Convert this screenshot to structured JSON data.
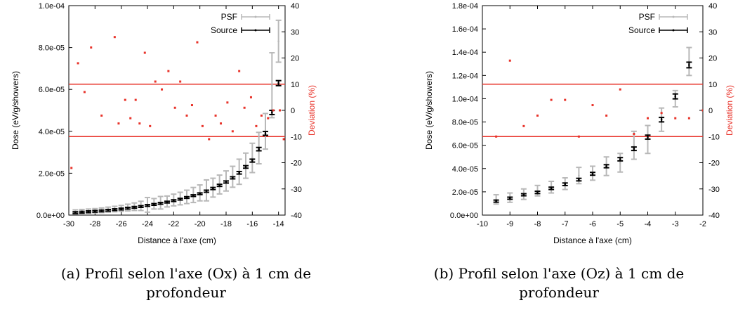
{
  "chart_data": [
    {
      "type": "scatter",
      "caption_line1": "(a) Profil selon l'axe (Ox) à 1 cm de",
      "caption_line2": "profondeur",
      "xlabel": "Distance à l'axe (cm)",
      "ylabel": "Dose (eV/g/showers)",
      "y2label": "Deviation (%)",
      "xlim": [
        -30,
        -13.5
      ],
      "ylim": [
        0,
        0.0001
      ],
      "y2lim": [
        -40,
        40
      ],
      "xticks": [
        "-30",
        "-28",
        "-26",
        "-24",
        "-22",
        "-20",
        "-18",
        "-16",
        "-14"
      ],
      "yticks": [
        "0.0e+00",
        "2.0e-05",
        "4.0e-05",
        "6.0e-05",
        "8.0e-05",
        "1.0e-04"
      ],
      "y2ticks": [
        "-40",
        "-30",
        "-20",
        "-10",
        "0",
        "10",
        "20",
        "30",
        "40"
      ],
      "legend_position": "top-right",
      "colors": {
        "psf": "#b8b8b8",
        "source": "#000000",
        "deviation": "#e8332a",
        "ref_lines": "#e8332a"
      },
      "ref_lines_y2": [
        10,
        -10
      ],
      "series": [
        {
          "name": "PSF",
          "x": [
            -29.5,
            -29,
            -28.5,
            -28,
            -27.5,
            -27,
            -26.5,
            -26,
            -25.5,
            -25,
            -24.5,
            -24,
            -23.5,
            -23,
            -22.5,
            -22,
            -21.5,
            -21,
            -20.5,
            -20,
            -19.5,
            -19,
            -18.5,
            -18,
            -17.5,
            -17,
            -16.5,
            -16,
            -15.5,
            -15,
            -14.5,
            -14
          ],
          "y": [
            1.5e-06,
            1.7e-06,
            1.9e-06,
            2.1e-06,
            2.3e-06,
            2.6e-06,
            2.9e-06,
            3.2e-06,
            3.6e-06,
            4e-06,
            4.4e-06,
            4.9e-06,
            5.4e-06,
            5.9e-06,
            6.5e-06,
            7.2e-06,
            7.9e-06,
            8.7e-06,
            9.6e-06,
            1.06e-05,
            1.18e-05,
            1.31e-05,
            1.46e-05,
            1.63e-05,
            1.83e-05,
            2.07e-05,
            2.36e-05,
            2.73e-05,
            3.2e-05,
            4e-05,
            6.2e-05,
            8.3e-05
          ],
          "err": [
            1e-06,
            1e-06,
            1e-06,
            1e-06,
            1.1e-06,
            1.2e-06,
            1.3e-06,
            1.4e-06,
            1.6e-06,
            1.8e-06,
            2.2e-06,
            3.5e-06,
            2.5e-06,
            3e-06,
            2.6e-06,
            2.8e-06,
            3e-06,
            3.2e-06,
            3.6e-06,
            3.8e-06,
            5e-06,
            4.5e-06,
            4.5e-06,
            4.8e-06,
            5e-06,
            6e-06,
            6e-06,
            7e-06,
            7.5e-06,
            8.5e-06,
            1.55e-05,
            1e-05
          ]
        },
        {
          "name": "Source",
          "x": [
            -29.5,
            -29,
            -28.5,
            -28,
            -27.5,
            -27,
            -26.5,
            -26,
            -25.5,
            -25,
            -24.5,
            -24,
            -23.5,
            -23,
            -22.5,
            -22,
            -21.5,
            -21,
            -20.5,
            -20,
            -19.5,
            -19,
            -18.5,
            -18,
            -17.5,
            -17,
            -16.5,
            -16,
            -15.5,
            -15,
            -14.5,
            -14
          ],
          "y": [
            1.2e-06,
            1.4e-06,
            1.6e-06,
            1.8e-06,
            2e-06,
            2.3e-06,
            2.6e-06,
            2.9e-06,
            3.3e-06,
            3.7e-06,
            4.1e-06,
            4.6e-06,
            5.1e-06,
            5.6e-06,
            6.2e-06,
            6.9e-06,
            7.6e-06,
            8.4e-06,
            9.3e-06,
            1.02e-05,
            1.14e-05,
            1.27e-05,
            1.42e-05,
            1.58e-05,
            1.78e-05,
            2.02e-05,
            2.3e-05,
            2.6e-05,
            3.15e-05,
            3.9e-05,
            4.9e-05,
            6.3e-05
          ],
          "err": [
            4e-07,
            4e-07,
            4e-07,
            4e-07,
            4e-07,
            4e-07,
            4e-07,
            4e-07,
            4e-07,
            4e-07,
            4e-07,
            4e-07,
            4e-07,
            4e-07,
            4e-07,
            4e-07,
            4e-07,
            4e-07,
            4e-07,
            4e-07,
            5e-07,
            5e-07,
            5e-07,
            5e-07,
            5e-07,
            6e-07,
            6e-07,
            7e-07,
            8e-07,
            9e-07,
            1e-06,
            1.2e-06
          ]
        },
        {
          "name": "Deviation",
          "axis": "y2",
          "x": [
            -29.8,
            -29.3,
            -28.8,
            -28.3,
            -27.5,
            -26.5,
            -26.2,
            -25.7,
            -25.3,
            -24.9,
            -24.6,
            -24.2,
            -23.8,
            -23.4,
            -22.9,
            -22.4,
            -21.9,
            -21.5,
            -21.0,
            -20.6,
            -20.2,
            -19.8,
            -19.3,
            -18.8,
            -18.4,
            -17.9,
            -17.5,
            -17.0,
            -16.6,
            -16.1,
            -15.7,
            -15.3,
            -14.8,
            -14.4,
            -13.9,
            -13.6
          ],
          "y": [
            -22,
            18,
            7,
            24,
            -2,
            28,
            -5,
            4,
            -3,
            4,
            -5,
            22,
            -6,
            11,
            8,
            15,
            1,
            11,
            -2,
            2,
            26,
            -6,
            -11,
            -2,
            -5,
            3,
            -8,
            15,
            1,
            5,
            -6,
            -2,
            -3,
            0,
            0,
            -11
          ]
        }
      ]
    },
    {
      "type": "scatter",
      "caption_line1": "(b) Profil selon l'axe (Oz) à 1 cm de",
      "caption_line2": "profondeur",
      "xlabel": "Distance à l'axe (cm)",
      "ylabel": "Dose (eV/g/showers)",
      "y2label": "Deviation (%)",
      "xlim": [
        -10,
        -2
      ],
      "ylim": [
        0,
        0.00018
      ],
      "y2lim": [
        -40,
        40
      ],
      "xticks": [
        "-10",
        "-9",
        "-8",
        "-7",
        "-6",
        "-5",
        "-4",
        "-3",
        "-2"
      ],
      "yticks": [
        "0.0e+00",
        "2.0e-05",
        "4.0e-05",
        "6.0e-05",
        "8.0e-05",
        "1.0e-04",
        "1.2e-04",
        "1.4e-04",
        "1.6e-04",
        "1.8e-04"
      ],
      "y2ticks": [
        "-40",
        "-30",
        "-20",
        "-10",
        "0",
        "10",
        "20",
        "30",
        "40"
      ],
      "legend_position": "top-right",
      "colors": {
        "psf": "#b8b8b8",
        "source": "#000000",
        "deviation": "#e8332a",
        "ref_lines": "#e8332a"
      },
      "ref_lines_y2": [
        10,
        -10
      ],
      "series": [
        {
          "name": "PSF",
          "x": [
            -9.5,
            -9,
            -8.5,
            -8,
            -7.5,
            -7,
            -6.5,
            -6,
            -5.5,
            -5,
            -4.5,
            -4,
            -3.5,
            -3,
            -2.5
          ],
          "y": [
            1.35e-05,
            1.5e-05,
            1.8e-05,
            2.1e-05,
            2.4e-05,
            2.7e-05,
            3.4e-05,
            3.6e-05,
            4.2e-05,
            4.5e-05,
            6e-05,
            6.5e-05,
            8.2e-05,
            0.0001,
            0.000132
          ],
          "err": [
            4e-06,
            4e-06,
            4.5e-06,
            4.5e-06,
            5e-06,
            5e-06,
            7e-06,
            6e-06,
            8e-06,
            8e-06,
            1.2e-05,
            1.2e-05,
            1e-05,
            7e-06,
            1.2e-05
          ]
        },
        {
          "name": "Source",
          "x": [
            -9.5,
            -9,
            -8.5,
            -8,
            -7.5,
            -7,
            -6.5,
            -6,
            -5.5,
            -5,
            -4.5,
            -4,
            -3.5,
            -3,
            -2.5
          ],
          "y": [
            1.2e-05,
            1.45e-05,
            1.75e-05,
            1.95e-05,
            2.3e-05,
            2.65e-05,
            3.05e-05,
            3.55e-05,
            4.2e-05,
            4.8e-05,
            5.7e-05,
            6.7e-05,
            8.2e-05,
            0.000102,
            0.000129
          ],
          "err": [
            9e-07,
            9e-07,
            9e-07,
            1e-06,
            1e-06,
            1.1e-06,
            1.1e-06,
            1.2e-06,
            1.3e-06,
            1.4e-06,
            1.5e-06,
            1.7e-06,
            1.9e-06,
            2.1e-06,
            2.4e-06
          ]
        },
        {
          "name": "Deviation",
          "axis": "y2",
          "x": [
            -9.5,
            -9,
            -8.5,
            -8,
            -7.5,
            -7,
            -6.5,
            -6,
            -5.5,
            -5,
            -4.5,
            -4,
            -3.5,
            -3,
            -2.5,
            -2
          ],
          "y": [
            -10,
            19,
            -6,
            -2,
            4,
            4,
            -10,
            2,
            -2,
            8,
            -9,
            -3,
            -1,
            -3,
            -3,
            0
          ]
        }
      ]
    }
  ]
}
